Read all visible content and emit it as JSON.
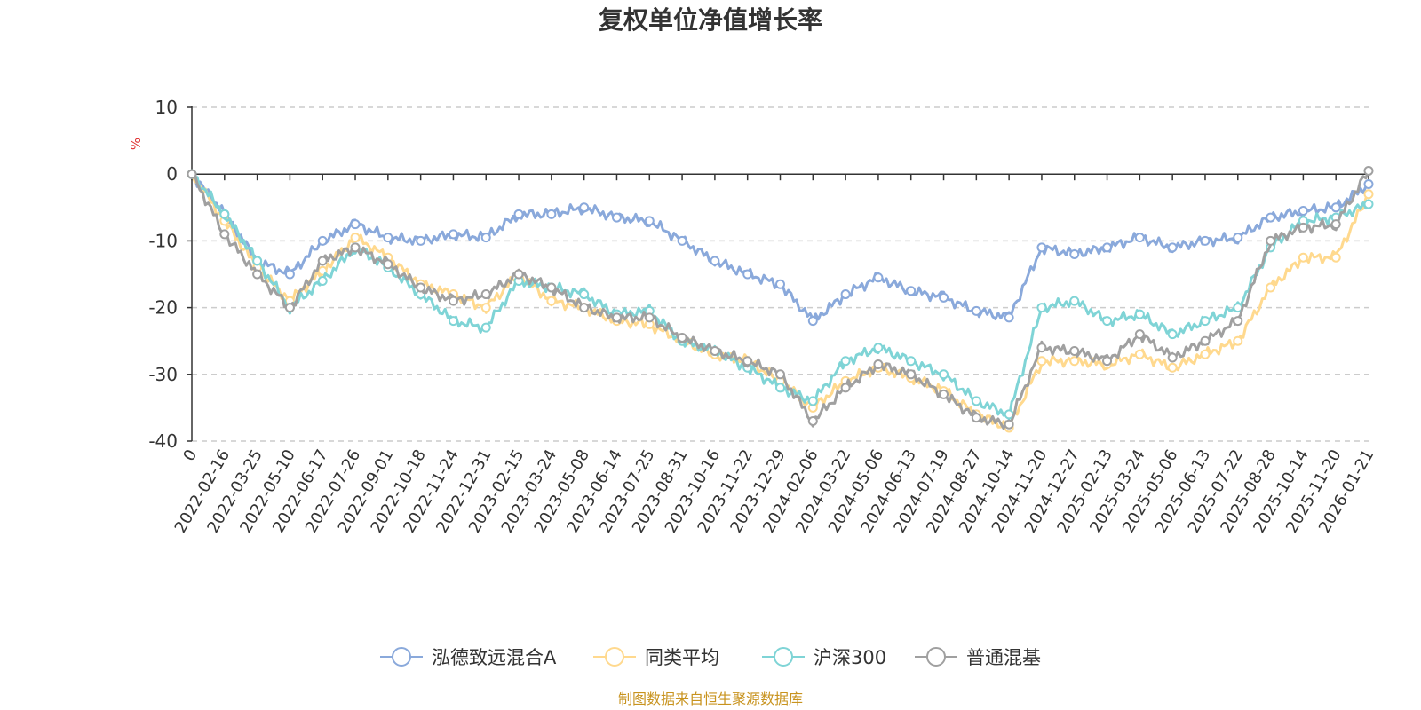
{
  "chart_data": {
    "type": "line",
    "title": "复权单位净值增长率",
    "ylabel": "%",
    "ylim": [
      -40,
      10
    ],
    "yticks": [
      10,
      0,
      -10,
      -20,
      -30,
      -40
    ],
    "grid": true,
    "legend_position": "bottom",
    "x_labels": [
      "0",
      "2022-02-16",
      "2022-03-25",
      "2022-05-10",
      "2022-06-17",
      "2022-07-26",
      "2022-09-01",
      "2022-10-18",
      "2022-11-24",
      "2022-12-31",
      "2023-02-15",
      "2023-03-24",
      "2023-05-08",
      "2023-06-14",
      "2023-07-25",
      "2023-08-31",
      "2023-10-16",
      "2023-11-22",
      "2023-12-29",
      "2024-02-06",
      "2024-03-22",
      "2024-05-06",
      "2024-06-13",
      "2024-07-19",
      "2024-08-27",
      "2024-10-14",
      "2024-11-20",
      "2024-12-27",
      "2025-02-13",
      "2025-03-24",
      "2025-05-06",
      "2025-06-13",
      "2025-07-22",
      "2025-08-28",
      "2025-10-14",
      "2025-11-20",
      "2026-01-21"
    ],
    "x": [
      0,
      1,
      2,
      3,
      4,
      5,
      6,
      7,
      8,
      9,
      10,
      11,
      12,
      13,
      14,
      15,
      16,
      17,
      18,
      19,
      20,
      21,
      22,
      23,
      24,
      25,
      26,
      27,
      28,
      29,
      30,
      31,
      32,
      33,
      34,
      35,
      36
    ],
    "series": [
      {
        "name": "泓德致远混合A",
        "color": "#8aa9db",
        "values": [
          0,
          -6,
          -13,
          -15,
          -10,
          -7.5,
          -9.5,
          -10,
          -9,
          -9.5,
          -6,
          -6,
          -5,
          -6.5,
          -7,
          -10,
          -13,
          -15,
          -16.5,
          -22,
          -18,
          -15.5,
          -17.5,
          -18.5,
          -20.5,
          -21.5,
          -11,
          -12,
          -11,
          -9.5,
          -11,
          -10,
          -9.5,
          -6.5,
          -5.5,
          -5,
          -1.5
        ]
      },
      {
        "name": "同类平均",
        "color": "#ffd98e",
        "values": [
          0,
          -7,
          -14,
          -19,
          -14.5,
          -9.5,
          -12.5,
          -16.5,
          -18,
          -20,
          -15,
          -19,
          -20,
          -22,
          -22.5,
          -25,
          -27,
          -28,
          -31,
          -35,
          -31,
          -29,
          -30.5,
          -32.5,
          -36,
          -38,
          -28,
          -28,
          -28.5,
          -27,
          -29,
          -27,
          -25,
          -17,
          -12.5,
          -12.5,
          -3
        ]
      },
      {
        "name": "沪深300",
        "color": "#7fd4d6",
        "values": [
          0,
          -6,
          -13,
          -20,
          -16,
          -11,
          -14,
          -18,
          -22,
          -23,
          -16,
          -17,
          -18,
          -21,
          -20.5,
          -25,
          -26.5,
          -29,
          -32,
          -34,
          -28,
          -26,
          -28,
          -30,
          -34,
          -36,
          -20,
          -19,
          -22,
          -21,
          -24,
          -22,
          -20,
          -11,
          -7,
          -6.5,
          -4.5
        ]
      },
      {
        "name": "普通混基",
        "color": "#a0a0a0",
        "values": [
          0,
          -9,
          -15,
          -20,
          -13,
          -11,
          -13.5,
          -17,
          -19,
          -18,
          -15,
          -17,
          -20,
          -21.5,
          -21.5,
          -24.5,
          -26.5,
          -28,
          -30,
          -37,
          -32,
          -28.5,
          -30,
          -33,
          -36.5,
          -37.5,
          -26,
          -26.5,
          -28,
          -24,
          -27.5,
          -25,
          -22,
          -10,
          -8,
          -7.5,
          0.5
        ]
      }
    ]
  },
  "legend": {
    "items": [
      "泓德致远混合A",
      "同类平均",
      "沪深300",
      "普通混基"
    ]
  },
  "footer": {
    "source": "制图数据来自恒生聚源数据库",
    "source_color": "#c8931e"
  },
  "unit_color": "#e03030"
}
